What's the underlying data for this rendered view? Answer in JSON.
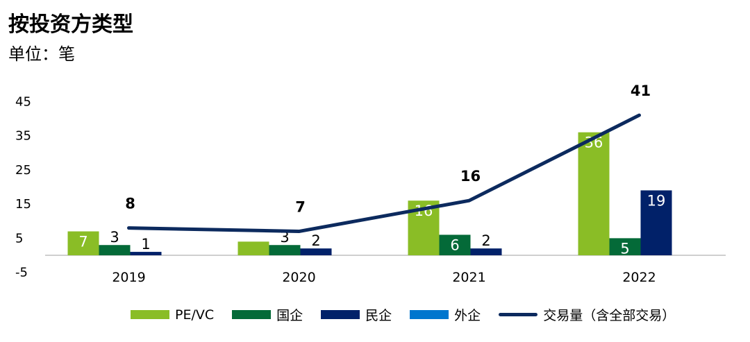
{
  "title": "按投资方类型",
  "subtitle": "单位：笔",
  "colors": {
    "pevc": "#8abd26",
    "soe": "#046a38",
    "private": "#012169",
    "foreign": "#0076ce",
    "line": "#0c2a5e"
  },
  "chart_data": {
    "type": "bar",
    "categories": [
      "2019",
      "2020",
      "2021",
      "2022"
    ],
    "series": [
      {
        "name": "PE/VC",
        "values": [
          7,
          4,
          16,
          36
        ],
        "labels": [
          "7",
          "",
          "16",
          "36"
        ]
      },
      {
        "name": "国企",
        "values": [
          3,
          3,
          6,
          5
        ],
        "labels": [
          "3",
          "3",
          "6",
          "5"
        ]
      },
      {
        "name": "民企",
        "values": [
          1,
          2,
          2,
          19
        ],
        "labels": [
          "1",
          "2",
          "2",
          "19"
        ]
      },
      {
        "name": "外企",
        "values": [
          0,
          0,
          0,
          0
        ],
        "labels": [
          "",
          "",
          "",
          ""
        ]
      }
    ],
    "line_series": {
      "name": "交易量（含全部交易）",
      "values": [
        8,
        7,
        16,
        41
      ],
      "labels": [
        "8",
        "7",
        "16",
        "41"
      ]
    },
    "yticks": [
      "45",
      "35",
      "25",
      "15",
      "5",
      "-5"
    ],
    "ylim": [
      -5,
      45
    ],
    "legend_position": "bottom"
  }
}
